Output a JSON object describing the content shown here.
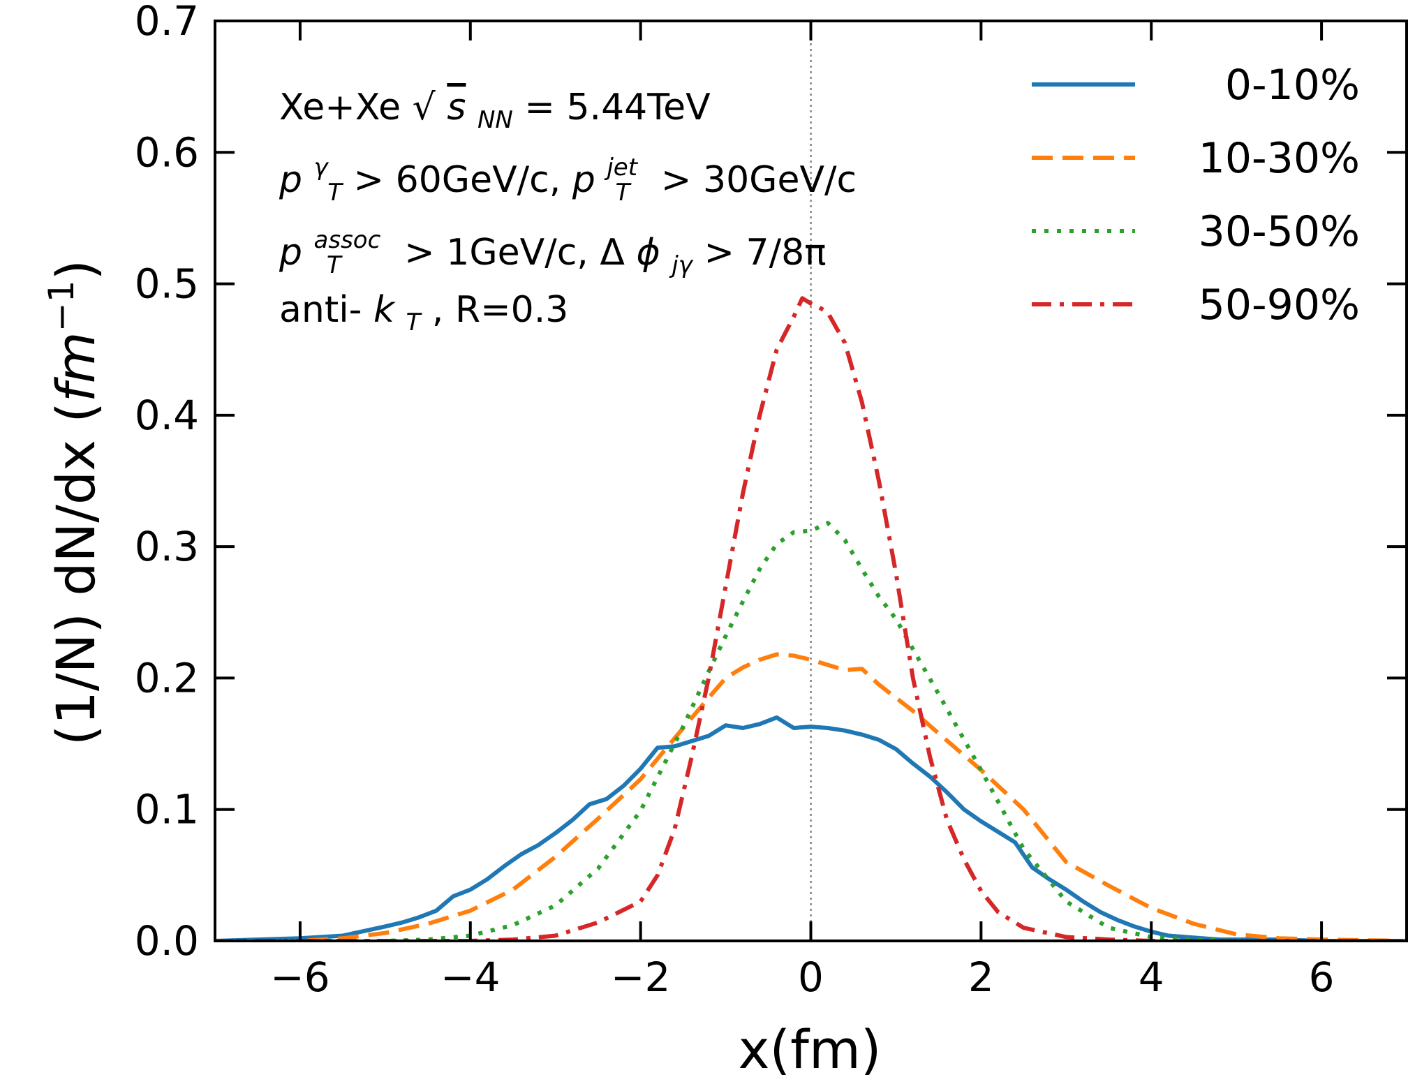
{
  "chart_data": {
    "type": "line",
    "xlabel": "x(fm)",
    "ylabel": "(1/N) dN/dx (fm⁻¹)",
    "ylabel_main": "(1/N) dN/dx (",
    "ylabel_unit": "fm",
    "ylabel_exp": "−1",
    "ylabel_close": ")",
    "xlim": [
      -7,
      7
    ],
    "ylim": [
      0,
      0.7
    ],
    "xticks": [
      -6,
      -4,
      -2,
      0,
      2,
      4,
      6
    ],
    "xtick_labels": [
      "−6",
      "−4",
      "−2",
      "0",
      "2",
      "4",
      "6"
    ],
    "yticks": [
      0.0,
      0.1,
      0.2,
      0.3,
      0.4,
      0.5,
      0.6,
      0.7
    ],
    "ytick_labels": [
      "0.0",
      "0.1",
      "0.2",
      "0.3",
      "0.4",
      "0.5",
      "0.6",
      "0.7"
    ],
    "grid": false,
    "legend_position": "top-right",
    "vertical_reference_line_x": 0,
    "annotations": [
      "Xe+Xe √s_NN = 5.44TeV",
      "p_T^γ > 60GeV/c, p_T^jet > 30GeV/c",
      "p_T^assoc > 1GeV/c, Δϕ_jγ >  7/8π",
      "anti-k_T, R=0.3"
    ],
    "series": [
      {
        "name": "0-10%",
        "color": "#1f77b4",
        "style": "solid",
        "x": [
          -7,
          -6.5,
          -6,
          -5.5,
          -5,
          -4.8,
          -4.6,
          -4.4,
          -4.2,
          -4,
          -3.8,
          -3.6,
          -3.4,
          -3.2,
          -3,
          -2.8,
          -2.6,
          -2.4,
          -2.2,
          -2,
          -1.8,
          -1.6,
          -1.4,
          -1.2,
          -1,
          -0.8,
          -0.6,
          -0.4,
          -0.2,
          0,
          0.2,
          0.4,
          0.6,
          0.8,
          1,
          1.2,
          1.4,
          1.6,
          1.8,
          2,
          2.2,
          2.4,
          2.6,
          2.8,
          3,
          3.2,
          3.4,
          3.6,
          3.8,
          4,
          4.2,
          4.4,
          4.6,
          4.8,
          5,
          5.5,
          6,
          6.5,
          7
        ],
        "y": [
          0.0,
          0.001,
          0.002,
          0.004,
          0.011,
          0.014,
          0.018,
          0.023,
          0.034,
          0.039,
          0.047,
          0.057,
          0.066,
          0.073,
          0.082,
          0.092,
          0.104,
          0.108,
          0.118,
          0.131,
          0.147,
          0.148,
          0.152,
          0.156,
          0.164,
          0.162,
          0.165,
          0.17,
          0.162,
          0.163,
          0.162,
          0.16,
          0.157,
          0.153,
          0.146,
          0.135,
          0.125,
          0.113,
          0.1,
          0.091,
          0.083,
          0.075,
          0.056,
          0.047,
          0.039,
          0.03,
          0.022,
          0.016,
          0.011,
          0.007,
          0.004,
          0.003,
          0.002,
          0.001,
          0.001,
          0.001,
          0.0,
          0.0,
          0.0
        ]
      },
      {
        "name": "10-30%",
        "color": "#ff7f0e",
        "style": "dashed",
        "x": [
          -7,
          -6,
          -5.5,
          -5,
          -4.5,
          -4,
          -3.5,
          -3,
          -2.5,
          -2,
          -1.5,
          -1.2,
          -1,
          -0.8,
          -0.6,
          -0.4,
          -0.2,
          0,
          0.2,
          0.4,
          0.6,
          0.8,
          1,
          1.2,
          1.5,
          2,
          2.5,
          3,
          3.5,
          4,
          4.5,
          5,
          5.5,
          6,
          7
        ],
        "y": [
          0.0,
          0.0,
          0.002,
          0.006,
          0.013,
          0.023,
          0.039,
          0.064,
          0.093,
          0.123,
          0.162,
          0.185,
          0.2,
          0.208,
          0.214,
          0.218,
          0.217,
          0.214,
          0.21,
          0.206,
          0.207,
          0.195,
          0.185,
          0.175,
          0.158,
          0.13,
          0.1,
          0.06,
          0.042,
          0.025,
          0.013,
          0.005,
          0.002,
          0.001,
          0.0
        ]
      },
      {
        "name": "30-50%",
        "color": "#2ca02c",
        "style": "dotted",
        "x": [
          -7,
          -5,
          -4.5,
          -4,
          -3.5,
          -3,
          -2.5,
          -2,
          -1.5,
          -1.2,
          -1,
          -0.8,
          -0.6,
          -0.4,
          -0.2,
          0,
          0.2,
          0.4,
          0.6,
          0.8,
          1,
          1.2,
          1.5,
          2,
          2.5,
          3,
          3.5,
          4,
          4.5,
          5,
          7
        ],
        "y": [
          0.0,
          0.0,
          0.001,
          0.004,
          0.012,
          0.027,
          0.055,
          0.099,
          0.163,
          0.205,
          0.232,
          0.258,
          0.283,
          0.302,
          0.311,
          0.312,
          0.318,
          0.305,
          0.283,
          0.262,
          0.245,
          0.222,
          0.188,
          0.13,
          0.07,
          0.03,
          0.01,
          0.003,
          0.001,
          0.0,
          0.0
        ]
      },
      {
        "name": "50-90%",
        "color": "#d62728",
        "style": "dashdot",
        "x": [
          -7,
          -4,
          -3.5,
          -3,
          -2.5,
          -2,
          -1.8,
          -1.6,
          -1.4,
          -1.2,
          -1,
          -0.8,
          -0.6,
          -0.4,
          -0.2,
          -0.1,
          0,
          0.1,
          0.2,
          0.4,
          0.6,
          0.8,
          1,
          1.2,
          1.4,
          1.6,
          1.8,
          2,
          2.2,
          2.5,
          3,
          3.5,
          4,
          7
        ],
        "y": [
          0.0,
          0.0,
          0.001,
          0.004,
          0.014,
          0.03,
          0.05,
          0.085,
          0.14,
          0.2,
          0.27,
          0.34,
          0.4,
          0.45,
          0.475,
          0.489,
          0.485,
          0.482,
          0.478,
          0.455,
          0.41,
          0.35,
          0.28,
          0.2,
          0.14,
          0.092,
          0.062,
          0.038,
          0.022,
          0.01,
          0.003,
          0.001,
          0.0,
          0.0
        ]
      }
    ]
  }
}
